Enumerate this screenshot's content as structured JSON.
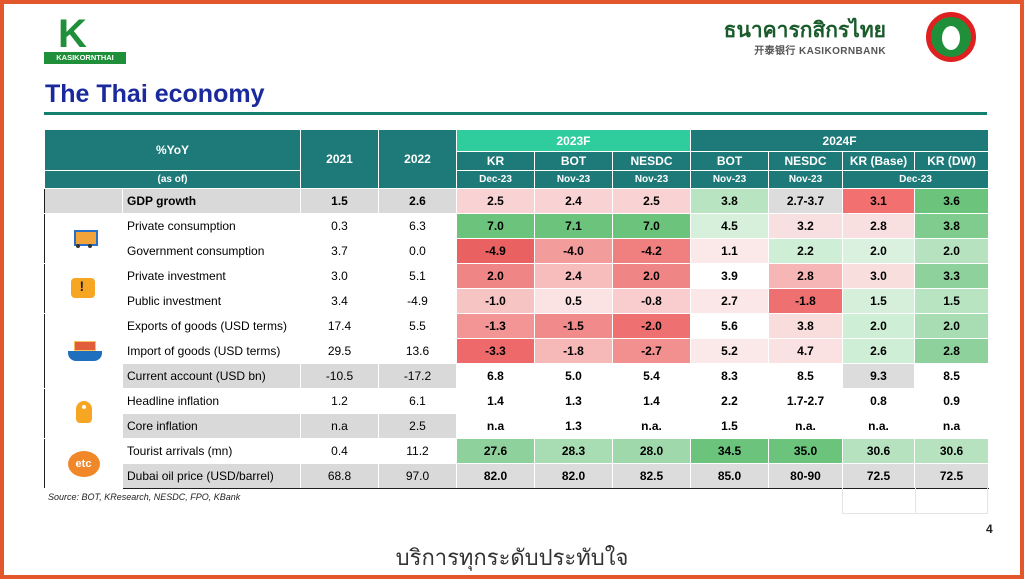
{
  "header": {
    "left_logo": "KASIKORNTHAI",
    "right_logo_thai": "ธนาคารกสิกรไทย",
    "right_logo_en": "开泰银行 KASIKORNBANK",
    "title": "The Thai economy"
  },
  "table": {
    "label_header": "%YoY",
    "as_of": "(as of)",
    "y2021": "2021",
    "y2022": "2022",
    "group_2023": "2023F",
    "group_2024": "2024F",
    "cols": [
      {
        "name": "KR",
        "date": "Dec-23"
      },
      {
        "name": "BOT",
        "date": "Nov-23"
      },
      {
        "name": "NESDC",
        "date": "Nov-23"
      },
      {
        "name": "BOT",
        "date": "Nov-23"
      },
      {
        "name": "NESDC",
        "date": "Nov-23"
      },
      {
        "name": "KR (Base)",
        "date": "Dec-23"
      },
      {
        "name": "KR (DW)",
        "date": ""
      }
    ],
    "rows": [
      {
        "label": "GDP growth",
        "v2021": "1.5",
        "v2022": "2.6",
        "f": [
          "2.5",
          "2.4",
          "2.5",
          "3.8",
          "2.7-3.7",
          "3.1",
          "3.6"
        ],
        "colors": [
          "#f9d3d3",
          "#f9d3d3",
          "#f9d3d3",
          "#b9e4c2",
          "#dcdcdc",
          "#f27070",
          "#6cc47c"
        ],
        "bold": true,
        "shaded": true
      },
      {
        "label": "Private consumption",
        "v2021": "0.3",
        "v2022": "6.3",
        "f": [
          "7.0",
          "7.1",
          "7.0",
          "4.5",
          "3.2",
          "2.8",
          "3.8"
        ],
        "colors": [
          "#6cc47c",
          "#6cc47c",
          "#6cc47c",
          "#d6f0dc",
          "#f9e0e0",
          "#f9e0e0",
          "#7fcc8e"
        ]
      },
      {
        "label": "Government consumption",
        "v2021": "3.7",
        "v2022": "0.0",
        "f": [
          "-4.9",
          "-4.0",
          "-4.2",
          "1.1",
          "2.2",
          "2.0",
          "2.0"
        ],
        "colors": [
          "#ea6161",
          "#f39c9c",
          "#f08080",
          "#fbe9e9",
          "#cfeed6",
          "#d9f1de",
          "#b6e2c0"
        ]
      },
      {
        "label": "Private investment",
        "v2021": "3.0",
        "v2022": "5.1",
        "f": [
          "2.0",
          "2.4",
          "2.0",
          "3.9",
          "2.8",
          "3.0",
          "3.3"
        ],
        "colors": [
          "#f08585",
          "#f7bcbc",
          "#f08585",
          "#ffffff",
          "#f7b6b6",
          "#f9dede",
          "#8fd19c"
        ]
      },
      {
        "label": "Public investment",
        "v2021": "3.4",
        "v2022": "-4.9",
        "f": [
          "-1.0",
          "0.5",
          "-0.8",
          "2.7",
          "-1.8",
          "1.5",
          "1.5"
        ],
        "colors": [
          "#f7c4c4",
          "#fbe3e3",
          "#f9cdcd",
          "#fbe7e7",
          "#ef7070",
          "#d6efdb",
          "#b9e4c2"
        ]
      },
      {
        "label": "Exports of goods (USD terms)",
        "v2021": "17.4",
        "v2022": "5.5",
        "f": [
          "-1.3",
          "-1.5",
          "-2.0",
          "5.6",
          "3.8",
          "2.0",
          "2.0"
        ],
        "colors": [
          "#f39595",
          "#f18a8a",
          "#ee7070",
          "#ffffff",
          "#f9dddd",
          "#cfeed6",
          "#a8dcb3"
        ]
      },
      {
        "label": "Import of goods (USD terms)",
        "v2021": "29.5",
        "v2022": "13.6",
        "f": [
          "-3.3",
          "-1.8",
          "-2.7",
          "5.2",
          "4.7",
          "2.6",
          "2.8"
        ],
        "colors": [
          "#ee6a6a",
          "#f7b8b8",
          "#f29090",
          "#fbe8e8",
          "#fbe2e2",
          "#cfeed6",
          "#8fd19c"
        ]
      },
      {
        "label": "Current account (USD bn)",
        "v2021": "-10.5",
        "v2022": "-17.2",
        "f": [
          "6.8",
          "5.0",
          "5.4",
          "8.3",
          "8.5",
          "9.3",
          "8.5"
        ],
        "colors": [
          "#ffffff",
          "#ffffff",
          "#ffffff",
          "#ffffff",
          "#ffffff",
          "#dcdcdc",
          "#ffffff"
        ],
        "shaded": true
      },
      {
        "label": "Headline inflation",
        "v2021": "1.2",
        "v2022": "6.1",
        "f": [
          "1.4",
          "1.3",
          "1.4",
          "2.2",
          "1.7-2.7",
          "0.8",
          "0.9"
        ],
        "colors": [
          "#ffffff",
          "#ffffff",
          "#ffffff",
          "#ffffff",
          "#ffffff",
          "#ffffff",
          "#ffffff"
        ]
      },
      {
        "label": "Core inflation",
        "v2021": "n.a",
        "v2022": "2.5",
        "f": [
          "n.a",
          "1.3",
          "n.a.",
          "1.5",
          "n.a.",
          "n.a.",
          "n.a"
        ],
        "colors": [
          "#ffffff",
          "#ffffff",
          "#ffffff",
          "#ffffff",
          "#ffffff",
          "#ffffff",
          "#ffffff"
        ],
        "shaded": true
      },
      {
        "label": "Tourist arrivals (mn)",
        "v2021": "0.4",
        "v2022": "11.2",
        "f": [
          "27.6",
          "28.3",
          "28.0",
          "34.5",
          "35.0",
          "30.6",
          "30.6"
        ],
        "colors": [
          "#8fd19c",
          "#a8dcb3",
          "#9fd8ab",
          "#6cc47c",
          "#6cc47c",
          "#b6e2c0",
          "#b6e2c0"
        ]
      },
      {
        "label": "Dubai oil price (USD/barrel)",
        "v2021": "68.8",
        "v2022": "97.0",
        "f": [
          "82.0",
          "82.0",
          "82.5",
          "85.0",
          "80-90",
          "72.5",
          "72.5"
        ],
        "colors": [
          "#dcdcdc",
          "#dcdcdc",
          "#dcdcdc",
          "#dcdcdc",
          "#dcdcdc",
          "#dcdcdc",
          "#dcdcdc"
        ],
        "shaded": true
      }
    ]
  },
  "source": "Source: BOT, KResearch, NESDC, FPO, KBank",
  "page_number": "4",
  "footer": "บริการทุกระดับประทับใจ"
}
